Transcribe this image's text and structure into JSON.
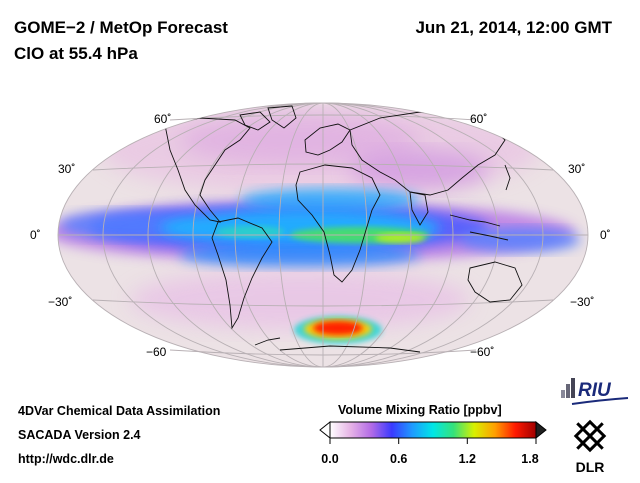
{
  "header": {
    "title": "GOME−2 / MetOp Forecast",
    "subtitle": "ClO at 55.4 hPa",
    "datetime": "Jun 21, 2014, 12:00 GMT"
  },
  "map": {
    "projection": "Hammer-Aitoff (global, centered 0°E)",
    "lat_labels_left": [
      "60˚",
      "30˚",
      "0˚",
      "−30˚",
      "−60"
    ],
    "lat_labels_right": [
      "60˚",
      "30˚",
      "0˚",
      "−30˚",
      "−60˚"
    ],
    "colors": {
      "ocean_bg": "#eadfe2",
      "graticule": "#b8b0b4",
      "coast": "#111111"
    }
  },
  "footer": {
    "line1": "4DVar Chemical Data Assimilation",
    "line2": "SACADA Version 2.4",
    "line3": "http://wdc.dlr.de"
  },
  "colorbar": {
    "title": "Volume Mixing Ratio [ppbv]",
    "ticks": [
      "0.0",
      "0.6",
      "1.2",
      "1.8"
    ],
    "min": 0.0,
    "max": 1.8,
    "stops": [
      "#ffffff",
      "#e6b3e6",
      "#b36be6",
      "#3a3aff",
      "#1e9bff",
      "#00e6e6",
      "#35e27a",
      "#d8f000",
      "#ffa000",
      "#ff1a00",
      "#a00000"
    ]
  },
  "logos": {
    "riu": "RIU",
    "dlr": "DLR"
  }
}
